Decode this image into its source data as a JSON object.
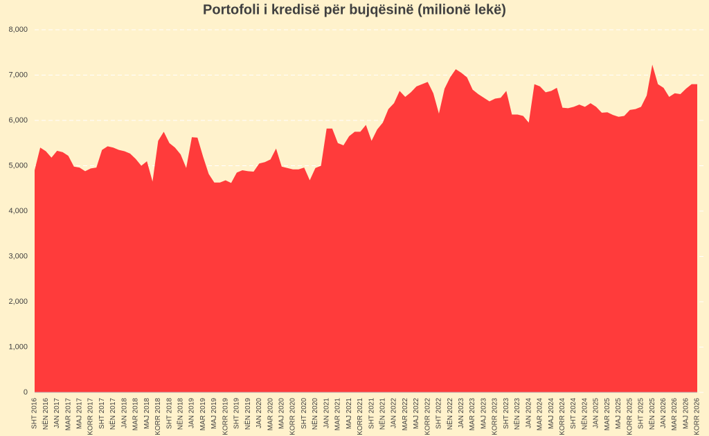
{
  "chart_data": {
    "type": "area",
    "title": "Portofoli i kredisë për bujqësinë (milionë lekë)",
    "color": "#ff3b3b",
    "grid": true,
    "ylim": [
      0,
      8000
    ],
    "yticks": [
      0,
      {
        "value": 1000,
        "label": "1,000"
      },
      {
        "value": 2000,
        "label": "2,000"
      },
      {
        "value": 3000,
        "label": "3,000"
      },
      {
        "value": 4000,
        "label": "4,000"
      },
      {
        "value": 5000,
        "label": "5,000"
      },
      {
        "value": 6000,
        "label": "6,000"
      },
      {
        "value": 7000,
        "label": "7,000"
      },
      {
        "value": 8000,
        "label": "8,000"
      }
    ],
    "categories": [
      "SHT 2016",
      null,
      "NËN 2016",
      null,
      "JAN 2017",
      null,
      "MAR 2017",
      null,
      "MAJ 2017",
      null,
      "KORR 2017",
      null,
      "SHT 2017",
      null,
      "NËN 2017",
      null,
      "JAN 2018",
      null,
      "MAR 2018",
      null,
      "MAJ 2018",
      null,
      "KORR 2018",
      null,
      "SHT 2018",
      null,
      "NËN 2018",
      null,
      "JAN 2019",
      null,
      "MAR 2019",
      null,
      "MAJ 2019",
      null,
      "KORR 2019",
      null,
      "SHT 2019",
      null,
      "NËN 2019",
      null,
      "JAN 2020",
      null,
      "MAR 2020",
      null,
      "MAJ 2020",
      null,
      "KORR 2020",
      null,
      "SHT 2020",
      null,
      "NËN 2020",
      null,
      "JAN 2021",
      null,
      "MAR 2021",
      null,
      "MAJ 2021",
      null,
      "KORR 2021",
      null,
      "SHT 2021",
      null,
      "NËN 2021",
      null,
      "JAN 2022",
      null,
      "MAR 2022",
      null,
      "MAJ 2022",
      null,
      "KORR 2022",
      null,
      "SHT 2022",
      null,
      "NËN 2022",
      null,
      "JAN 2023",
      null,
      "MAR 2023",
      null,
      "MAJ 2023",
      null,
      "KORR 2023",
      null,
      "SHT 2023",
      null,
      "NËN 2023",
      null,
      "JAN 2024",
      null,
      "MAR 2024",
      null,
      "MAJ 2024",
      null,
      "KORR 2024",
      null,
      "SHT 2024",
      null,
      "NËN 2024",
      null,
      "JAN 2025",
      null,
      "MAR 2025",
      null,
      "MAJ 2025",
      null,
      "KORR 2025",
      null,
      "SHT 2025",
      null,
      "NËN 2025",
      null,
      "JAN 2026",
      null,
      "MAR 2026",
      null,
      "MAJ 2026",
      null,
      "KORR 2026"
    ],
    "values": [
      4900,
      5400,
      5320,
      5180,
      5330,
      5300,
      5220,
      4980,
      4960,
      4880,
      4940,
      4960,
      5350,
      5430,
      5400,
      5350,
      5320,
      5270,
      5150,
      5000,
      5100,
      4650,
      5550,
      5750,
      5500,
      5400,
      5250,
      4950,
      5630,
      5620,
      5200,
      4820,
      4630,
      4630,
      4680,
      4620,
      4850,
      4900,
      4880,
      4870,
      5050,
      5080,
      5140,
      5380,
      4980,
      4950,
      4920,
      4920,
      4960,
      4680,
      4950,
      5000,
      5820,
      5820,
      5500,
      5450,
      5650,
      5750,
      5750,
      5900,
      5550,
      5800,
      5950,
      6250,
      6380,
      6650,
      6520,
      6620,
      6750,
      6800,
      6850,
      6600,
      6150,
      6700,
      6950,
      7130,
      7050,
      6950,
      6680,
      6580,
      6500,
      6420,
      6480,
      6500,
      6650,
      6130,
      6130,
      6100,
      5950,
      6800,
      6750,
      6620,
      6650,
      6720,
      6280,
      6270,
      6300,
      6350,
      6300,
      6380,
      6300,
      6170,
      6180,
      6120,
      6080,
      6100,
      6230,
      6250,
      6300,
      6550,
      7230,
      6800,
      6720,
      6520,
      6600,
      6580,
      6700,
      6800,
      6800
    ]
  }
}
